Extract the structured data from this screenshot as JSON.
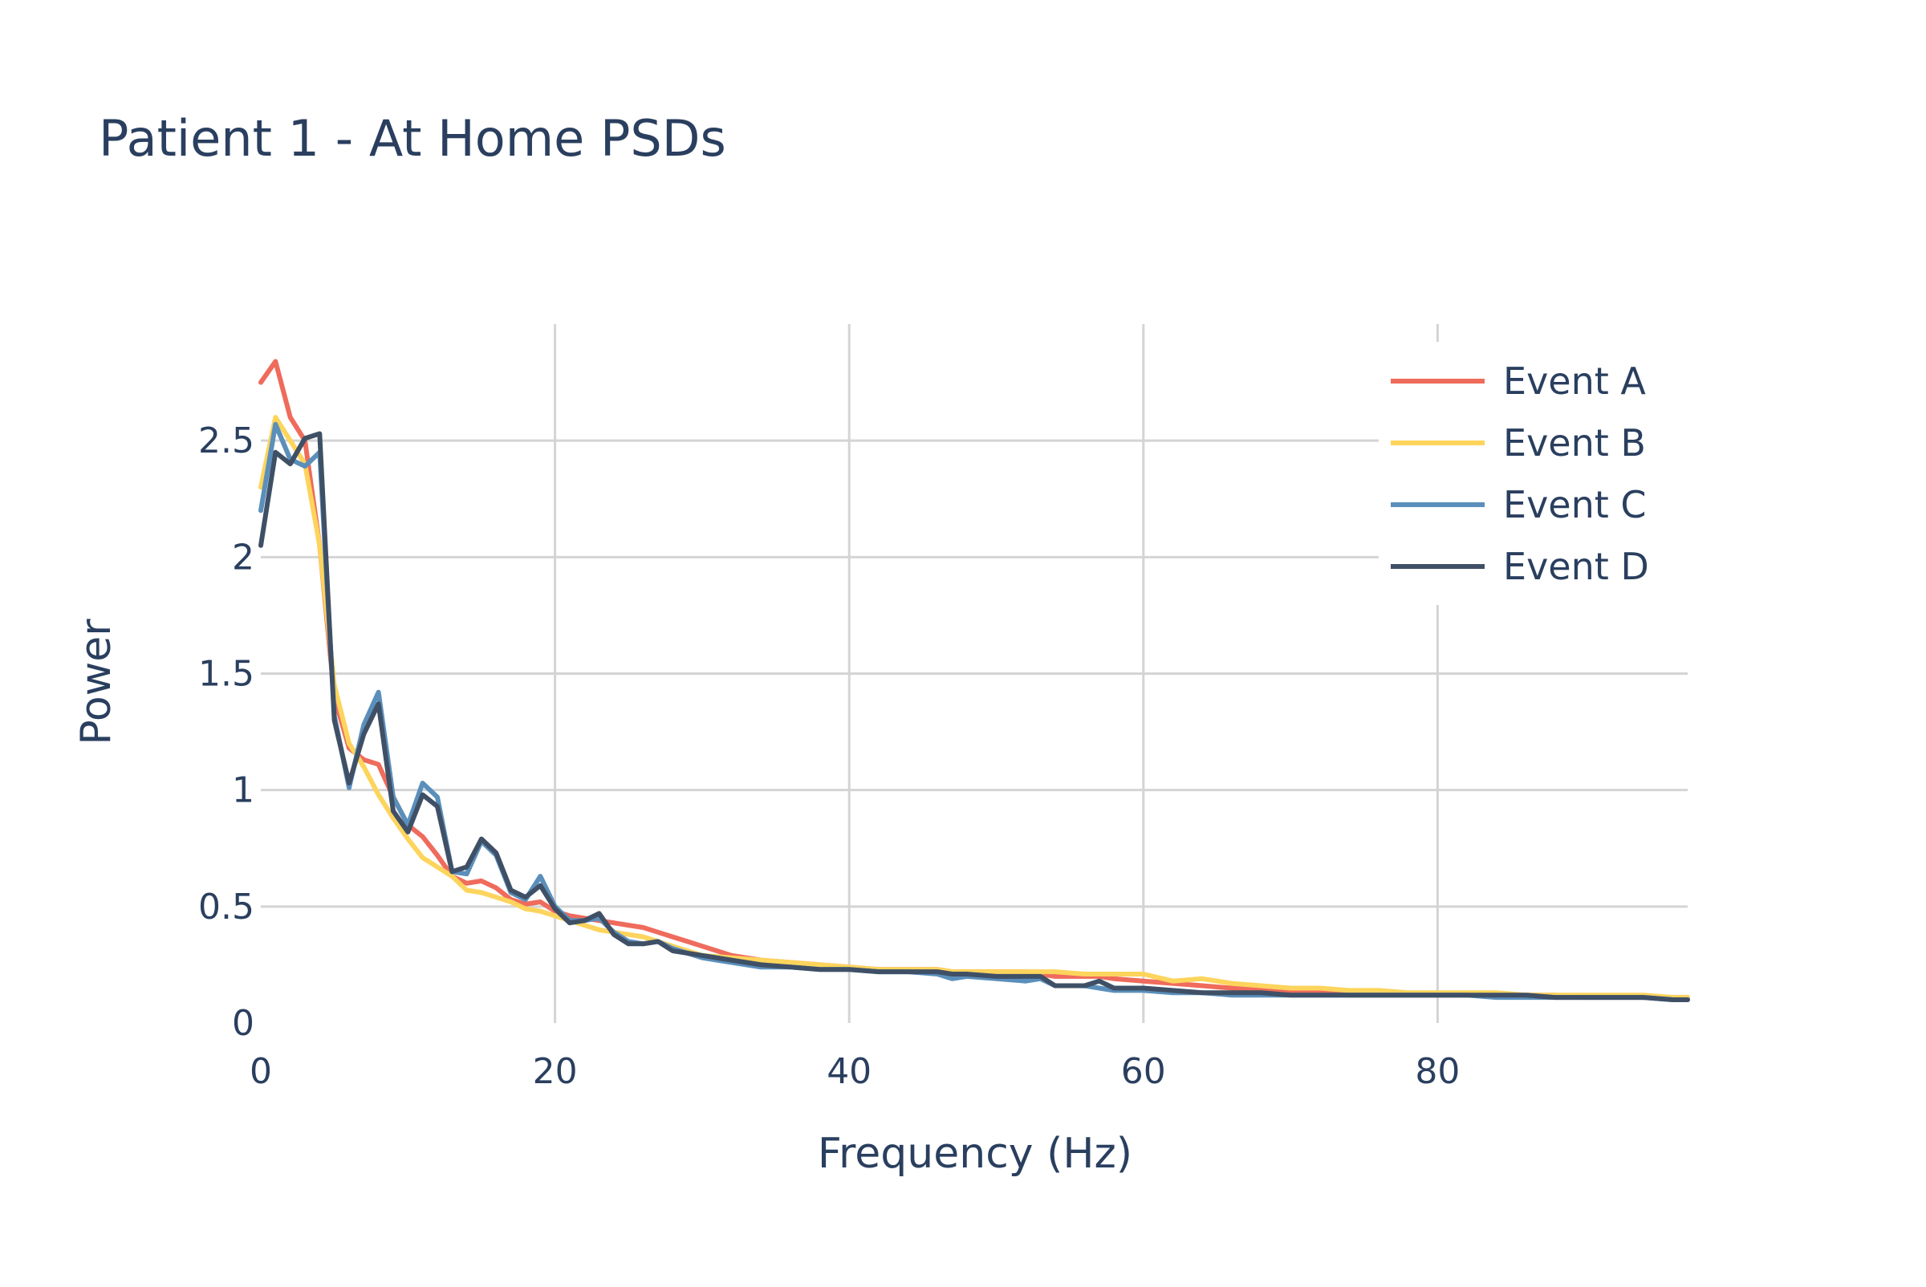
{
  "chart_data": {
    "type": "line",
    "title": "Patient 1 - At Home PSDs",
    "xlabel": "Frequency (Hz)",
    "ylabel": "Power",
    "xlim": [
      0,
      97
    ],
    "ylim": [
      0,
      3.0
    ],
    "xticks": [
      0,
      20,
      40,
      60,
      80
    ],
    "xtick_labels": [
      "0",
      "20",
      "40",
      "60",
      "80"
    ],
    "yticks": [
      0,
      0.5,
      1,
      1.5,
      2,
      2.5
    ],
    "ytick_labels": [
      "0",
      "0.5",
      "1",
      "1.5",
      "2",
      "2.5"
    ],
    "grid": true,
    "legend_position": "top-right",
    "x": [
      0,
      1,
      2,
      3,
      4,
      5,
      6,
      7,
      8,
      9,
      10,
      11,
      12,
      13,
      14,
      15,
      16,
      17,
      18,
      19,
      20,
      21,
      22,
      23,
      24,
      25,
      26,
      27,
      28,
      29,
      30,
      32,
      34,
      36,
      38,
      40,
      42,
      44,
      46,
      47,
      48,
      50,
      52,
      53,
      54,
      56,
      57,
      58,
      60,
      62,
      64,
      66,
      68,
      70,
      72,
      74,
      76,
      78,
      80,
      82,
      84,
      86,
      88,
      90,
      92,
      94,
      96,
      97
    ],
    "series": [
      {
        "name": "Event A",
        "color": "#ef6b5c",
        "values": [
          2.75,
          2.84,
          2.6,
          2.5,
          2.05,
          1.4,
          1.18,
          1.13,
          1.11,
          0.97,
          0.85,
          0.8,
          0.72,
          0.63,
          0.6,
          0.61,
          0.58,
          0.53,
          0.51,
          0.52,
          0.48,
          0.46,
          0.45,
          0.44,
          0.43,
          0.42,
          0.41,
          0.39,
          0.37,
          0.35,
          0.33,
          0.29,
          0.27,
          0.26,
          0.25,
          0.24,
          0.23,
          0.23,
          0.23,
          0.22,
          0.22,
          0.22,
          0.22,
          0.21,
          0.2,
          0.2,
          0.2,
          0.19,
          0.18,
          0.17,
          0.16,
          0.15,
          0.14,
          0.13,
          0.13,
          0.12,
          0.12,
          0.12,
          0.12,
          0.12,
          0.12,
          0.12,
          0.12,
          0.11,
          0.11,
          0.11,
          0.11,
          0.11
        ]
      },
      {
        "name": "Event B",
        "color": "#fdd45c",
        "values": [
          2.3,
          2.6,
          2.5,
          2.4,
          2.05,
          1.45,
          1.2,
          1.1,
          0.98,
          0.88,
          0.79,
          0.71,
          0.67,
          0.63,
          0.57,
          0.56,
          0.54,
          0.52,
          0.49,
          0.48,
          0.46,
          0.44,
          0.42,
          0.4,
          0.39,
          0.38,
          0.37,
          0.35,
          0.33,
          0.31,
          0.29,
          0.28,
          0.27,
          0.26,
          0.25,
          0.24,
          0.23,
          0.23,
          0.23,
          0.22,
          0.22,
          0.22,
          0.22,
          0.22,
          0.22,
          0.21,
          0.21,
          0.21,
          0.21,
          0.18,
          0.19,
          0.17,
          0.16,
          0.15,
          0.15,
          0.14,
          0.14,
          0.13,
          0.13,
          0.13,
          0.13,
          0.12,
          0.12,
          0.12,
          0.12,
          0.12,
          0.11,
          0.11
        ]
      },
      {
        "name": "Event C",
        "color": "#5b8fbb",
        "values": [
          2.2,
          2.57,
          2.42,
          2.39,
          2.45,
          1.32,
          1.01,
          1.28,
          1.42,
          0.97,
          0.85,
          1.03,
          0.97,
          0.65,
          0.64,
          0.78,
          0.72,
          0.56,
          0.53,
          0.63,
          0.5,
          0.44,
          0.44,
          0.45,
          0.39,
          0.35,
          0.34,
          0.35,
          0.32,
          0.3,
          0.28,
          0.26,
          0.24,
          0.24,
          0.23,
          0.23,
          0.22,
          0.22,
          0.21,
          0.19,
          0.2,
          0.19,
          0.18,
          0.19,
          0.16,
          0.16,
          0.15,
          0.14,
          0.14,
          0.13,
          0.13,
          0.12,
          0.12,
          0.12,
          0.12,
          0.12,
          0.12,
          0.12,
          0.12,
          0.12,
          0.11,
          0.11,
          0.11,
          0.11,
          0.11,
          0.11,
          0.1,
          0.1
        ]
      },
      {
        "name": "Event D",
        "color": "#3f5066",
        "values": [
          2.05,
          2.45,
          2.4,
          2.51,
          2.53,
          1.3,
          1.03,
          1.24,
          1.37,
          0.91,
          0.82,
          0.98,
          0.93,
          0.65,
          0.67,
          0.79,
          0.73,
          0.57,
          0.54,
          0.59,
          0.49,
          0.43,
          0.44,
          0.47,
          0.38,
          0.34,
          0.34,
          0.35,
          0.31,
          0.3,
          0.29,
          0.27,
          0.25,
          0.24,
          0.23,
          0.23,
          0.22,
          0.22,
          0.22,
          0.21,
          0.21,
          0.2,
          0.2,
          0.2,
          0.16,
          0.16,
          0.18,
          0.15,
          0.15,
          0.14,
          0.13,
          0.13,
          0.13,
          0.12,
          0.12,
          0.12,
          0.12,
          0.12,
          0.12,
          0.12,
          0.12,
          0.12,
          0.11,
          0.11,
          0.11,
          0.11,
          0.1,
          0.1
        ]
      }
    ]
  }
}
